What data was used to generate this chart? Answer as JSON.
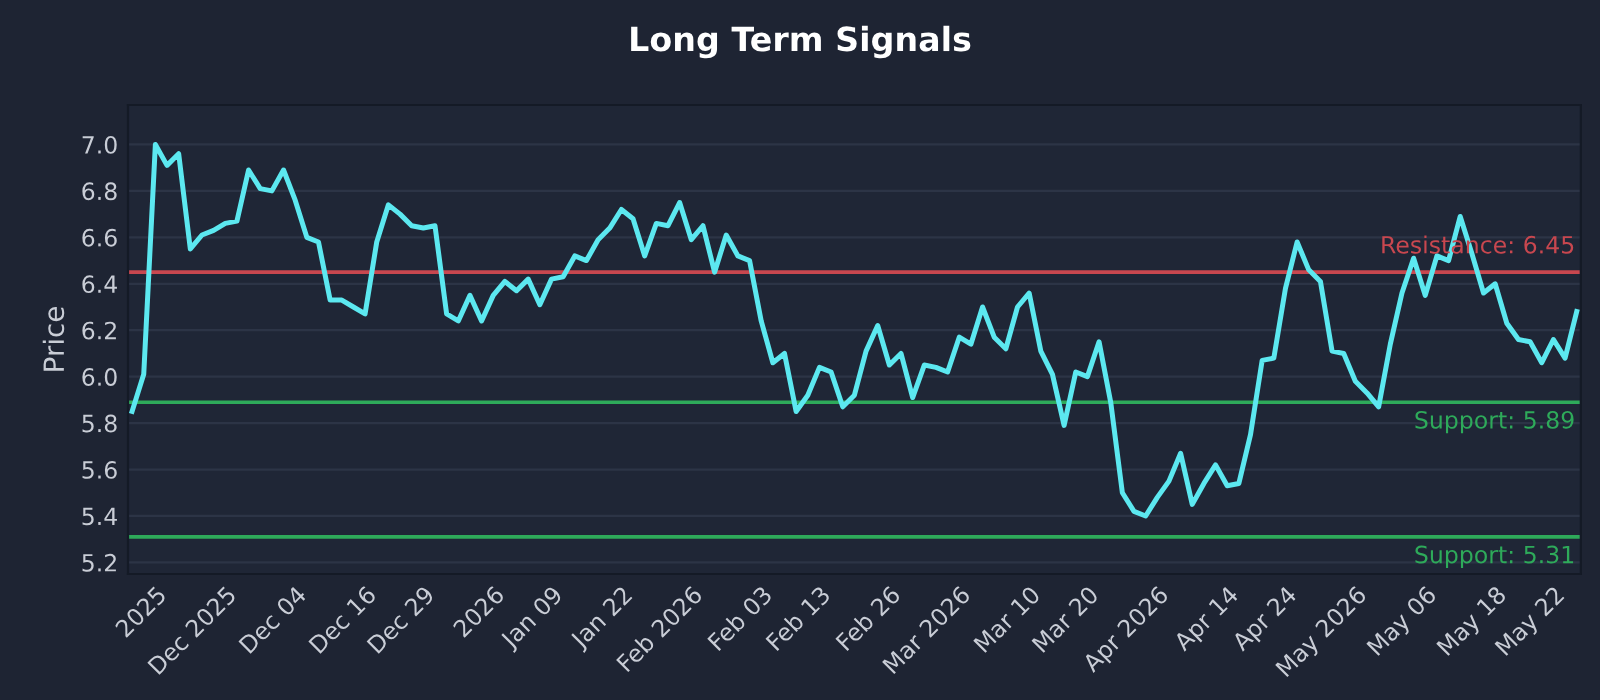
{
  "chart_data": {
    "type": "line",
    "title": "Long Term Signals",
    "ylabel": "Price",
    "categories": [
      null,
      null,
      "2025",
      null,
      null,
      null,
      null,
      null,
      "Dec 2025",
      null,
      null,
      null,
      null,
      null,
      "Dec 04",
      null,
      null,
      null,
      null,
      null,
      "Dec 16",
      null,
      null,
      null,
      null,
      "Dec 29",
      null,
      null,
      null,
      null,
      null,
      "2026",
      null,
      null,
      null,
      null,
      "Jan 09",
      null,
      null,
      null,
      null,
      null,
      "Jan 22",
      null,
      null,
      null,
      null,
      null,
      "Feb 2026",
      null,
      null,
      null,
      null,
      null,
      "Feb 03",
      null,
      null,
      null,
      null,
      "Feb 13",
      null,
      null,
      null,
      null,
      null,
      "Feb 26",
      null,
      null,
      null,
      null,
      null,
      "Mar 2026",
      null,
      null,
      null,
      null,
      null,
      "Mar 10",
      null,
      null,
      null,
      null,
      "Mar 20",
      null,
      null,
      null,
      null,
      null,
      "Apr 2026",
      null,
      null,
      null,
      null,
      null,
      "Apr 14",
      null,
      null,
      null,
      null,
      "Apr 24",
      null,
      null,
      null,
      null,
      null,
      "May 2026",
      null,
      null,
      null,
      null,
      null,
      "May 06",
      null,
      null,
      null,
      null,
      null,
      "May 18",
      null,
      null,
      null,
      null,
      "May 22",
      null,
      null
    ],
    "series": [
      {
        "color": "#5ce8f0",
        "values": [
          5.85,
          6.01,
          7.0,
          6.91,
          6.96,
          6.55,
          6.61,
          6.63,
          6.66,
          6.67,
          6.89,
          6.81,
          6.8,
          6.89,
          6.76,
          6.6,
          6.58,
          6.33,
          6.33,
          6.3,
          6.27,
          6.58,
          6.74,
          6.7,
          6.65,
          6.64,
          6.65,
          6.27,
          6.24,
          6.35,
          6.24,
          6.35,
          6.41,
          6.37,
          6.42,
          6.31,
          6.42,
          6.43,
          6.52,
          6.5,
          6.59,
          6.64,
          6.72,
          6.68,
          6.52,
          6.66,
          6.65,
          6.75,
          6.59,
          6.65,
          6.45,
          6.61,
          6.52,
          6.5,
          6.24,
          6.06,
          6.1,
          5.85,
          5.92,
          6.04,
          6.02,
          5.87,
          5.92,
          6.11,
          6.22,
          6.05,
          6.1,
          5.91,
          6.05,
          6.04,
          6.02,
          6.17,
          6.14,
          6.3,
          6.17,
          6.12,
          6.3,
          6.36,
          6.11,
          6.01,
          5.79,
          6.02,
          6.0,
          6.15,
          5.89,
          5.5,
          5.42,
          5.4,
          5.48,
          5.55,
          5.67,
          5.45,
          5.54,
          5.62,
          5.53,
          5.54,
          5.75,
          6.07,
          6.08,
          6.38,
          6.58,
          6.46,
          6.41,
          6.11,
          6.1,
          5.98,
          5.93,
          5.87,
          6.14,
          6.36,
          6.51,
          6.35,
          6.52,
          6.5,
          6.69,
          6.53,
          6.36,
          6.4,
          6.23,
          6.16,
          6.15,
          6.06,
          6.16,
          6.08,
          6.28
        ]
      }
    ],
    "ylim": [
      5.15,
      7.17
    ],
    "yticks": [
      {
        "value": 5.2,
        "label": "5.2"
      },
      {
        "value": 5.4,
        "label": "5.4"
      },
      {
        "value": 5.6,
        "label": "5.6"
      },
      {
        "value": 5.8,
        "label": "5.8"
      },
      {
        "value": 6.0,
        "label": "6.0"
      },
      {
        "value": 6.2,
        "label": "6.2"
      },
      {
        "value": 6.4,
        "label": "6.4"
      },
      {
        "value": 6.6,
        "label": "6.6"
      },
      {
        "value": 6.8,
        "label": "6.8"
      },
      {
        "value": 7.0,
        "label": "7.0"
      }
    ],
    "grid": "y",
    "legend": false,
    "marker": "none",
    "line_style": "solid",
    "ref_lines": [
      {
        "axis": "y",
        "value": 6.45,
        "label": "Resistance: 6.45",
        "color": "#c8474f"
      },
      {
        "axis": "y",
        "value": 5.89,
        "label": "Support: 5.89",
        "color": "#2eaa5a"
      },
      {
        "axis": "y",
        "value": 5.31,
        "label": "Support: 5.31",
        "color": "#2eaa5a"
      }
    ]
  }
}
